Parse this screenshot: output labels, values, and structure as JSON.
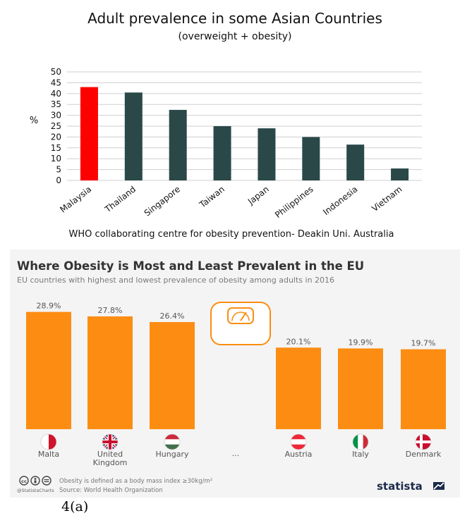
{
  "chart_data": [
    {
      "type": "bar",
      "title": "Adult prevalence in some Asian Countries",
      "subtitle": "(overweight + obesity)",
      "ylabel": "%",
      "xlabel": "",
      "categories": [
        "Malaysia",
        "Thailand",
        "Singapore",
        "Taiwan",
        "Japan",
        "Philippines",
        "Indonesia",
        "Vietnam"
      ],
      "values": [
        43,
        40.5,
        32.5,
        25,
        24,
        20,
        16.5,
        5.5
      ],
      "ylim": [
        0,
        50
      ],
      "yticks": [
        0,
        5,
        10,
        15,
        20,
        25,
        30,
        35,
        40,
        45,
        50
      ],
      "grid": true,
      "colors": {
        "highlight": "#ff0000",
        "default": "#2a4848"
      },
      "highlight_index": 0,
      "source": "WHO collaborating centre for obesity prevention- Deakin Uni. Australia"
    },
    {
      "type": "bar",
      "title": "Where Obesity is Most and Least Prevalent in the EU",
      "subtitle": "EU countries with highest and lowest prevalence of obesity among adults in 2016",
      "categories": [
        "Malta",
        "United Kingdom",
        "Hungary",
        "...",
        "Austria",
        "Italy",
        "Denmark"
      ],
      "category_lines": [
        [
          "Malta"
        ],
        [
          "United",
          "Kingdom"
        ],
        [
          "Hungary"
        ],
        [
          "..."
        ],
        [
          "Austria"
        ],
        [
          "Italy"
        ],
        [
          "Denmark"
        ]
      ],
      "values": [
        28.9,
        27.8,
        26.4,
        null,
        20.1,
        19.9,
        19.7
      ],
      "value_labels": [
        "28.9%",
        "27.8%",
        "26.4%",
        "",
        "20.1%",
        "19.9%",
        "19.7%"
      ],
      "ylim": [
        0,
        29
      ],
      "colors": {
        "bar": "#fc8d12",
        "title": "#333333",
        "subtitle": "#7a7a7a"
      },
      "flags": [
        "malta-flag-icon",
        "uk-flag-icon",
        "hungary-flag-icon",
        "",
        "austria-flag-icon",
        "italy-flag-icon",
        "denmark-flag-icon"
      ],
      "center_icon": "weighing-scale-icon",
      "footnote": "Obesity is defined as a body mass index ≥30kg/m²",
      "source": "Source: World Health Organization",
      "handle": "@StatistaCharts",
      "license_icons": [
        "cc-icon",
        "by-icon",
        "nd-icon"
      ],
      "brand": "statista"
    }
  ],
  "caption": "4(a)"
}
